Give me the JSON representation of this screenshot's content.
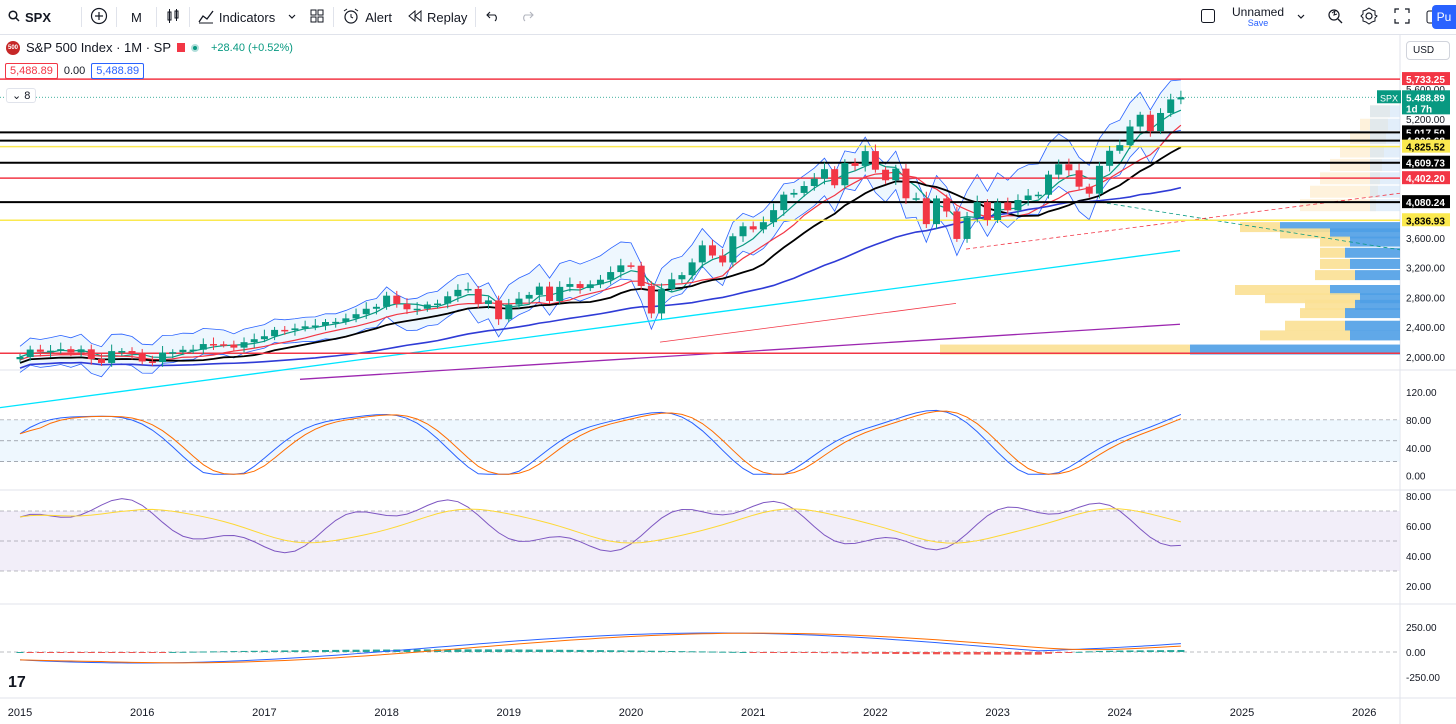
{
  "toolbar": {
    "symbol": "SPX",
    "interval": "M",
    "indicators_label": "Indicators",
    "alert_label": "Alert",
    "replay_label": "Replay",
    "layout_name": "Unnamed",
    "save_label": "Save",
    "publish_label": "Pu"
  },
  "legend": {
    "logo_text": "500",
    "title": "S&P 500 Index · 1M · SP",
    "change": "+28.40 (+0.52%)",
    "sell_price": "5,488.89",
    "spread": "0.00",
    "buy_price": "5,488.89",
    "collapse_count": "8"
  },
  "currency": "USD",
  "price_axis": {
    "ticks": [
      "5,600.00",
      "5,200.00",
      "3,600.00",
      "3,200.00",
      "2,800.00",
      "2,400.00",
      "2,000.00"
    ],
    "tick_values": [
      5600,
      5200,
      3600,
      3200,
      2800,
      2400,
      2000
    ],
    "labels": [
      {
        "text": "5,733.25",
        "value": 5733.25,
        "bg": "#f23645",
        "fg": "#ffffff"
      },
      {
        "text": "5,488.89",
        "value": 5488.89,
        "bg": "#089981",
        "fg": "#ffffff"
      },
      {
        "text": "1d 7h",
        "value": 5340,
        "bg": "#089981",
        "fg": "#ffffff"
      },
      {
        "text": "5,017.50",
        "value": 5017.5,
        "bg": "#000000",
        "fg": "#ffffff"
      },
      {
        "text": "4,906.68",
        "value": 4906.68,
        "bg": "#000000",
        "fg": "#ffffff"
      },
      {
        "text": "4,825.52",
        "value": 4825.52,
        "bg": "#fbe94f",
        "fg": "#000000"
      },
      {
        "text": "4,609.73",
        "value": 4609.73,
        "bg": "#000000",
        "fg": "#ffffff"
      },
      {
        "text": "4,402.20",
        "value": 4402.2,
        "bg": "#f23645",
        "fg": "#ffffff"
      },
      {
        "text": "4,080.24",
        "value": 4080.24,
        "bg": "#000000",
        "fg": "#ffffff"
      },
      {
        "text": "3,836.93",
        "value": 3836.93,
        "bg": "#fbe94f",
        "fg": "#000000"
      }
    ],
    "spx_tag": "SPX"
  },
  "stoch_axis": [
    "120.00",
    "80.00",
    "40.00",
    "0.00"
  ],
  "rsi_axis": [
    "80.00",
    "60.00",
    "40.00",
    "20.00"
  ],
  "macd_axis": [
    "250.00",
    "0.00",
    "-250.00"
  ],
  "time_axis": [
    "2015",
    "2016",
    "2017",
    "2018",
    "2019",
    "2020",
    "2021",
    "2022",
    "2023",
    "2024",
    "2025",
    "2026"
  ],
  "horizontal_levels": [
    {
      "value": 5733.25,
      "color": "#f23645"
    },
    {
      "value": 5017.5,
      "color": "#000000"
    },
    {
      "value": 4906.68,
      "color": "#000000"
    },
    {
      "value": 4825.52,
      "color": "#fbe94f"
    },
    {
      "value": 4609.73,
      "color": "#000000"
    },
    {
      "value": 4402.2,
      "color": "#f23645"
    },
    {
      "value": 4080.24,
      "color": "#000000"
    },
    {
      "value": 3836.93,
      "color": "#fbe94f"
    },
    {
      "value": 2050,
      "color": "#f23645"
    }
  ],
  "colors": {
    "up": "#089981",
    "down": "#f23645",
    "accent": "#2962ff"
  },
  "watermark": "17"
}
